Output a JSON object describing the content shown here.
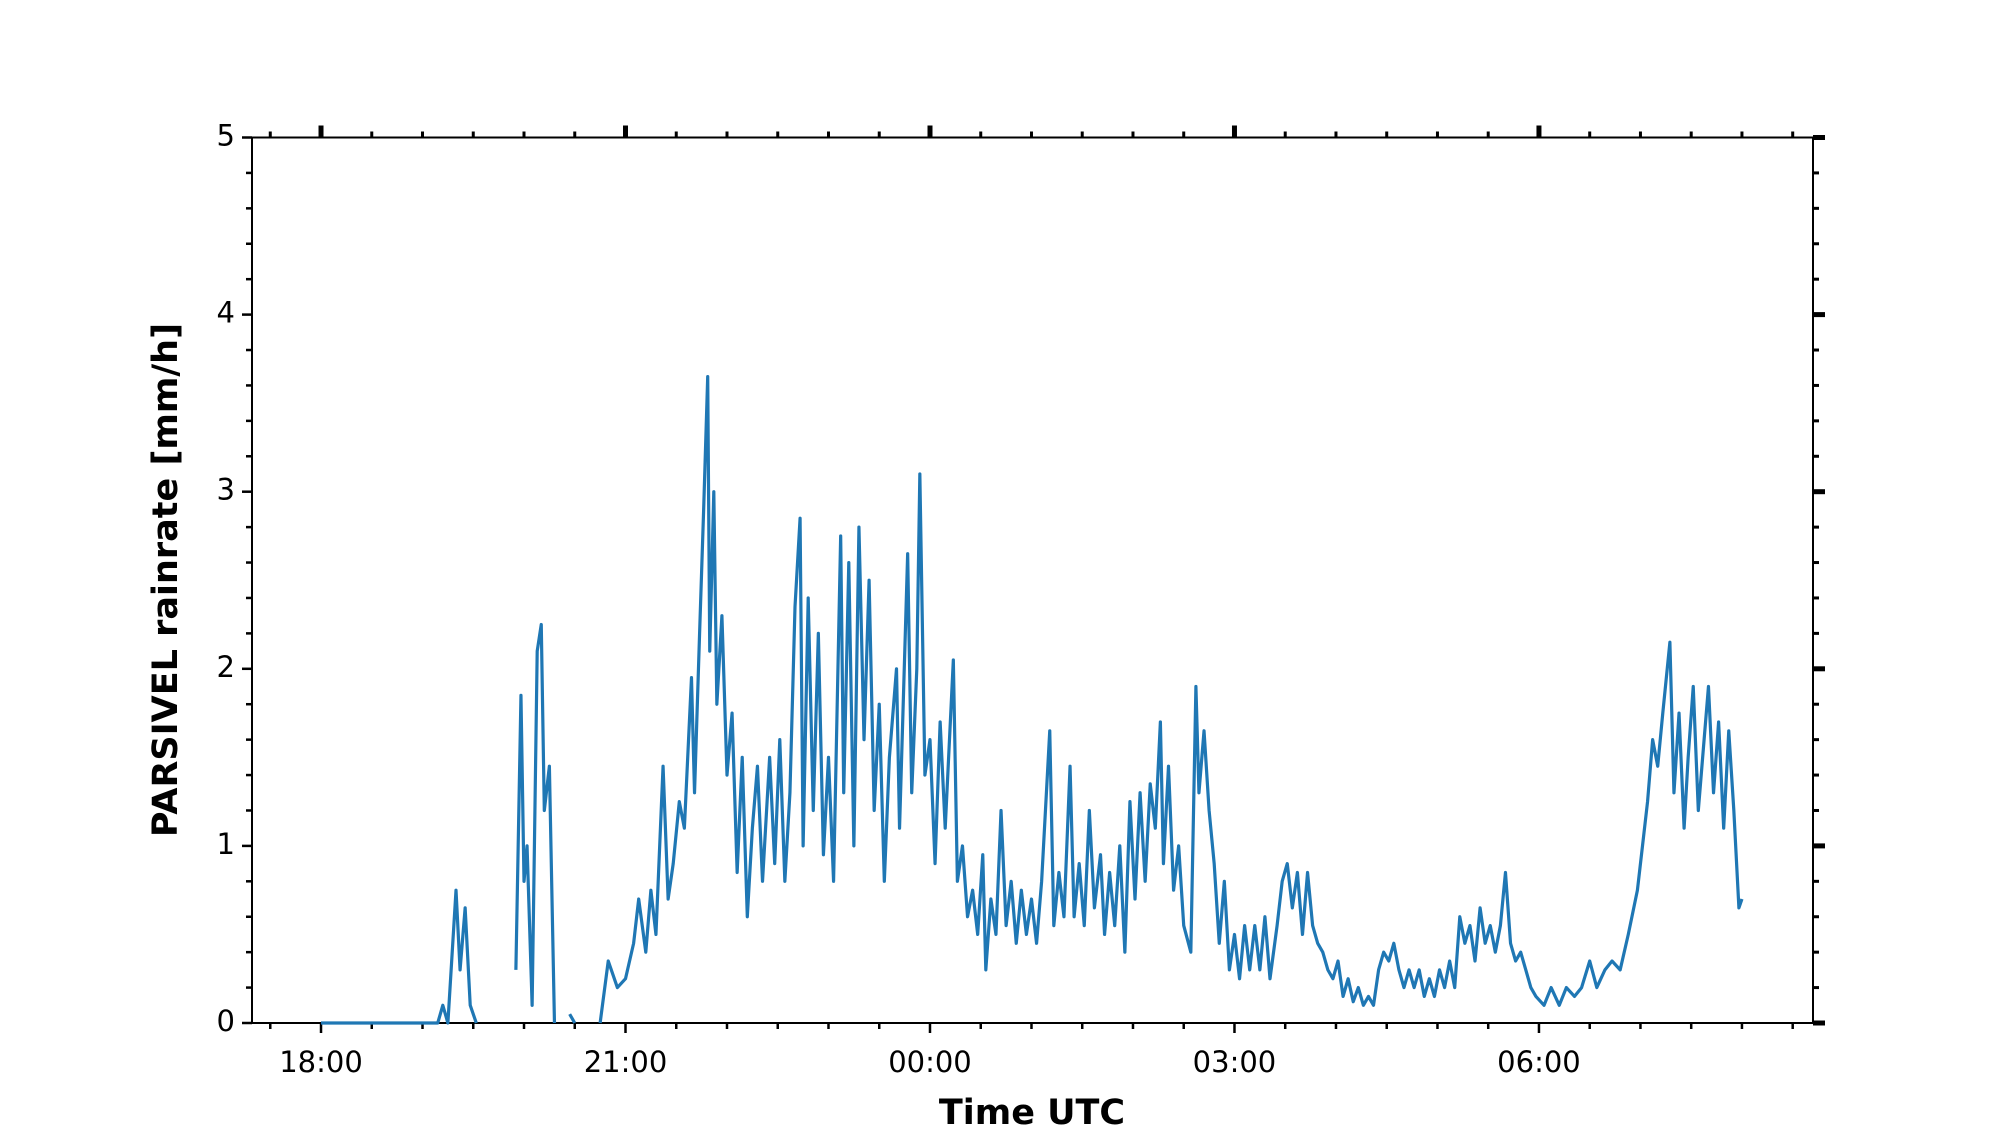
{
  "chart_data": {
    "type": "line",
    "xlabel": "Time UTC",
    "ylabel": "PARSIVEL rainrate [mm/h]",
    "xlim": [
      17.32,
      32.7
    ],
    "ylim": [
      0,
      5
    ],
    "xticks": [
      {
        "value": 18,
        "label": "18:00"
      },
      {
        "value": 21,
        "label": "21:00"
      },
      {
        "value": 24,
        "label": "00:00"
      },
      {
        "value": 27,
        "label": "03:00"
      },
      {
        "value": 30,
        "label": "06:00"
      }
    ],
    "yticks": [
      0,
      1,
      2,
      3,
      4,
      5
    ],
    "xminorticks": [
      17.5,
      18.5,
      19,
      19.5,
      20,
      20.5,
      21.5,
      22,
      22.5,
      23,
      23.5,
      24.5,
      25,
      25.5,
      26,
      26.5,
      27.5,
      28,
      28.5,
      29,
      29.5,
      30.5,
      31,
      31.5,
      32,
      32.5
    ],
    "yminorticks": [
      0.2,
      0.4,
      0.6,
      0.8,
      1.2,
      1.4,
      1.6,
      1.8,
      2.2,
      2.4,
      2.6,
      2.8,
      3.2,
      3.4,
      3.6,
      3.8,
      4.2,
      4.4,
      4.6,
      4.8
    ],
    "series": [
      {
        "color": "#1f77b4",
        "x": [
          18,
          19.15,
          19.2,
          19.25,
          19.33,
          19.37,
          19.42,
          19.47,
          19.53,
          19.7,
          19.92,
          19.97,
          20.0,
          20.03,
          20.08,
          20.13,
          20.17,
          20.2,
          20.25,
          20.3,
          20.38,
          20.45,
          20.5,
          20.65,
          20.75,
          20.83,
          20.92,
          21.0,
          21.08,
          21.13,
          21.2,
          21.25,
          21.3,
          21.37,
          21.42,
          21.47,
          21.53,
          21.58,
          21.65,
          21.68,
          21.73,
          21.77,
          21.81,
          21.83,
          21.87,
          21.9,
          21.95,
          22.0,
          22.05,
          22.1,
          22.15,
          22.2,
          22.25,
          22.3,
          22.35,
          22.42,
          22.47,
          22.52,
          22.57,
          22.62,
          22.67,
          22.72,
          22.75,
          22.8,
          22.85,
          22.9,
          22.95,
          23.0,
          23.05,
          23.12,
          23.15,
          23.2,
          23.25,
          23.3,
          23.35,
          23.4,
          23.45,
          23.5,
          23.55,
          23.6,
          23.67,
          23.7,
          23.78,
          23.82,
          23.87,
          23.9,
          23.95,
          24.0,
          24.05,
          24.1,
          24.15,
          24.23,
          24.27,
          24.32,
          24.37,
          24.42,
          24.47,
          24.52,
          24.55,
          24.6,
          24.65,
          24.7,
          24.75,
          24.8,
          24.85,
          24.9,
          24.95,
          25.0,
          25.05,
          25.1,
          25.18,
          25.22,
          25.27,
          25.32,
          25.38,
          25.42,
          25.47,
          25.52,
          25.57,
          25.62,
          25.68,
          25.72,
          25.77,
          25.82,
          25.87,
          25.92,
          25.97,
          26.02,
          26.07,
          26.12,
          26.17,
          26.22,
          26.27,
          26.3,
          26.35,
          26.4,
          26.45,
          26.5,
          26.57,
          26.62,
          26.65,
          26.7,
          26.75,
          26.8,
          26.85,
          26.9,
          26.95,
          27.0,
          27.05,
          27.1,
          27.15,
          27.2,
          27.25,
          27.3,
          27.35,
          27.42,
          27.47,
          27.52,
          27.57,
          27.62,
          27.67,
          27.72,
          27.77,
          27.82,
          27.87,
          27.92,
          27.97,
          28.02,
          28.07,
          28.12,
          28.17,
          28.22,
          28.27,
          28.32,
          28.37,
          28.42,
          28.47,
          28.52,
          28.57,
          28.62,
          28.67,
          28.72,
          28.77,
          28.82,
          28.87,
          28.92,
          28.97,
          29.02,
          29.07,
          29.12,
          29.17,
          29.22,
          29.27,
          29.32,
          29.37,
          29.42,
          29.47,
          29.52,
          29.57,
          29.62,
          29.67,
          29.72,
          29.77,
          29.82,
          29.87,
          29.92,
          29.97,
          30.05,
          30.12,
          30.2,
          30.27,
          30.35,
          30.42,
          30.5,
          30.57,
          30.65,
          30.72,
          30.8,
          30.88,
          30.97,
          31.02,
          31.07,
          31.12,
          31.17,
          31.22,
          31.29,
          31.33,
          31.38,
          31.43,
          31.47,
          31.52,
          31.57,
          31.62,
          31.67,
          31.72,
          31.77,
          31.82,
          31.87,
          31.92,
          31.97,
          32.0
        ],
        "values": [
          0,
          0,
          0.1,
          0,
          0.75,
          0.3,
          0.65,
          0.1,
          0,
          null,
          0.3,
          1.85,
          0.8,
          1.0,
          0.1,
          2.1,
          2.25,
          1.2,
          1.45,
          0,
          null,
          0.05,
          0,
          null,
          0,
          0.35,
          0.2,
          0.25,
          0.45,
          0.7,
          0.4,
          0.75,
          0.5,
          1.45,
          0.7,
          0.9,
          1.25,
          1.1,
          1.95,
          1.3,
          2.2,
          2.9,
          3.65,
          2.1,
          3.0,
          1.8,
          2.3,
          1.4,
          1.75,
          0.85,
          1.5,
          0.6,
          1.1,
          1.45,
          0.8,
          1.5,
          0.9,
          1.6,
          0.8,
          1.3,
          2.35,
          2.85,
          1.0,
          2.4,
          1.2,
          2.2,
          0.95,
          1.5,
          0.8,
          2.75,
          1.3,
          2.6,
          1.0,
          2.8,
          1.6,
          2.5,
          1.2,
          1.8,
          0.8,
          1.5,
          2.0,
          1.1,
          2.65,
          1.3,
          2.0,
          3.1,
          1.4,
          1.6,
          0.9,
          1.7,
          1.1,
          2.05,
          0.8,
          1.0,
          0.6,
          0.75,
          0.5,
          0.95,
          0.3,
          0.7,
          0.5,
          1.2,
          0.55,
          0.8,
          0.45,
          0.75,
          0.5,
          0.7,
          0.45,
          0.8,
          1.65,
          0.55,
          0.85,
          0.6,
          1.45,
          0.6,
          0.9,
          0.55,
          1.2,
          0.65,
          0.95,
          0.5,
          0.85,
          0.55,
          1.0,
          0.4,
          1.25,
          0.7,
          1.3,
          0.8,
          1.35,
          1.1,
          1.7,
          0.9,
          1.45,
          0.75,
          1.0,
          0.55,
          0.4,
          1.9,
          1.3,
          1.65,
          1.2,
          0.9,
          0.45,
          0.8,
          0.3,
          0.5,
          0.25,
          0.55,
          0.3,
          0.55,
          0.3,
          0.6,
          0.25,
          0.55,
          0.8,
          0.9,
          0.65,
          0.85,
          0.5,
          0.85,
          0.55,
          0.45,
          0.4,
          0.3,
          0.25,
          0.35,
          0.15,
          0.25,
          0.12,
          0.2,
          0.1,
          0.15,
          0.1,
          0.3,
          0.4,
          0.35,
          0.45,
          0.3,
          0.2,
          0.3,
          0.2,
          0.3,
          0.15,
          0.25,
          0.15,
          0.3,
          0.2,
          0.35,
          0.2,
          0.6,
          0.45,
          0.55,
          0.35,
          0.65,
          0.45,
          0.55,
          0.4,
          0.55,
          0.85,
          0.45,
          0.35,
          0.4,
          0.3,
          0.2,
          0.15,
          0.1,
          0.2,
          0.1,
          0.2,
          0.15,
          0.2,
          0.35,
          0.2,
          0.3,
          0.35,
          0.3,
          0.5,
          0.75,
          1.0,
          1.25,
          1.6,
          1.45,
          1.75,
          2.15,
          1.3,
          1.75,
          1.1,
          1.5,
          1.9,
          1.2,
          1.55,
          1.9,
          1.3,
          1.7,
          1.1,
          1.65,
          1.2,
          0.65,
          0.7
        ]
      }
    ]
  }
}
